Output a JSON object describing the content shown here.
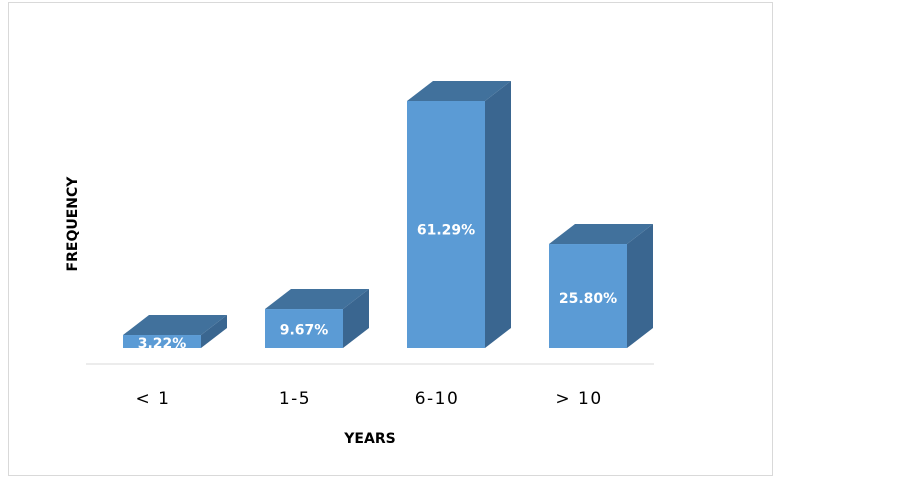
{
  "chart_data": {
    "type": "bar",
    "categories": [
      "< 1",
      "1-5",
      "6-10",
      "> 10"
    ],
    "values": [
      3.22,
      9.67,
      61.29,
      25.8
    ],
    "data_labels": [
      "3.22%",
      "9.67%",
      "61.29%",
      "25.80%"
    ],
    "xlabel": "YEARS",
    "ylabel": "FREQUENCY",
    "ylim": [
      0,
      70
    ],
    "grid": false,
    "legend": "none",
    "three_d": true,
    "colors": {
      "front": "#5b9bd5",
      "top": "#41719c",
      "side": "#3a6690"
    }
  }
}
